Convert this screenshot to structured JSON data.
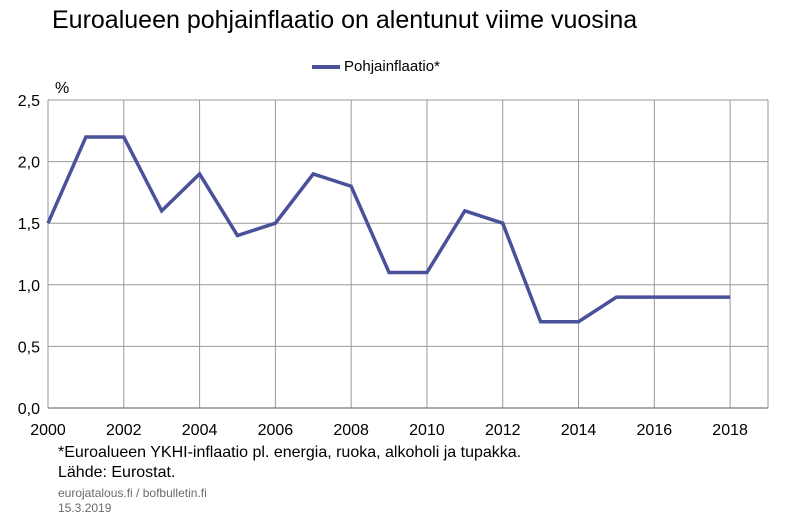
{
  "chart_data": {
    "type": "line",
    "title": "Euroalueen pohjainflaatio on alentunut viime vuosina",
    "unit_label": "%",
    "series": [
      {
        "name": "Pohjainflaatio*",
        "color": "#4a509a",
        "x": [
          2000,
          2001,
          2002,
          2003,
          2004,
          2005,
          2006,
          2007,
          2008,
          2009,
          2010,
          2011,
          2012,
          2013,
          2014,
          2015,
          2016,
          2017,
          2018
        ],
        "values": [
          1.5,
          2.2,
          2.2,
          1.6,
          1.9,
          1.4,
          1.5,
          1.9,
          1.8,
          1.1,
          1.1,
          1.6,
          1.5,
          0.7,
          0.7,
          0.9,
          0.9,
          0.9,
          0.9
        ]
      }
    ],
    "x_ticks": [
      "2000",
      "2002",
      "2004",
      "2006",
      "2008",
      "2010",
      "2012",
      "2014",
      "2016",
      "2018"
    ],
    "y_ticks": [
      "0,0",
      "0,5",
      "1,0",
      "1,5",
      "2,0",
      "2,5"
    ],
    "xlim": [
      2000,
      2019
    ],
    "ylim": [
      0,
      2.5
    ],
    "grid": true,
    "legend_position": "top-center"
  },
  "notes": {
    "footnote": "*Euroalueen YKHI-inflaatio pl. energia, ruoka, alkoholi ja tupakka.",
    "source": "Lähde: Eurostat.",
    "website": "eurojatalous.fi / bofbulletin.fi",
    "date": "15.3.2019"
  }
}
